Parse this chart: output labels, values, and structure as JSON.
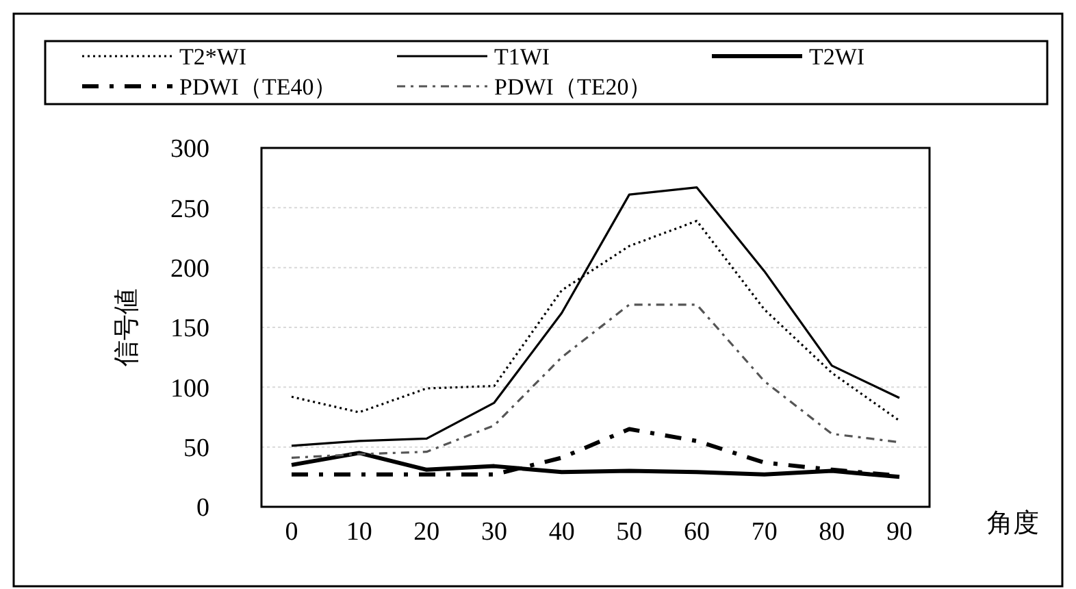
{
  "chart_data": {
    "type": "line",
    "xlabel": "角度",
    "ylabel": "信号値",
    "categories": [
      "0",
      "10",
      "20",
      "30",
      "40",
      "50",
      "60",
      "70",
      "80",
      "90"
    ],
    "ylim": [
      0,
      300
    ],
    "yticks": [
      0,
      50,
      100,
      150,
      200,
      250,
      300
    ],
    "grid": "y",
    "legend": "top",
    "marker": "none",
    "series": [
      {
        "name": "T2*WI",
        "color": "#000000",
        "line_style": "dotted",
        "values": [
          92,
          79,
          99,
          101,
          181,
          218,
          239,
          165,
          112,
          72
        ]
      },
      {
        "name": "T1WI",
        "color": "#000000",
        "line_style": "solid",
        "values": [
          51,
          55,
          57,
          87,
          162,
          261,
          267,
          197,
          118,
          91
        ]
      },
      {
        "name": "T2WI",
        "color": "#000000",
        "line_style": "solid",
        "values": [
          35,
          45,
          31,
          34,
          29,
          30,
          29,
          27,
          30,
          25
        ]
      },
      {
        "name": "PDWI（TE40）",
        "color": "#000000",
        "line_style": "dashed",
        "values": [
          27,
          27,
          27,
          27,
          41,
          65,
          55,
          37,
          31,
          26
        ]
      },
      {
        "name": "PDWI（TE20）",
        "color": "#555555",
        "line_style": "dashed",
        "values": [
          41,
          44,
          46,
          68,
          125,
          169,
          169,
          105,
          61,
          54
        ]
      }
    ]
  }
}
